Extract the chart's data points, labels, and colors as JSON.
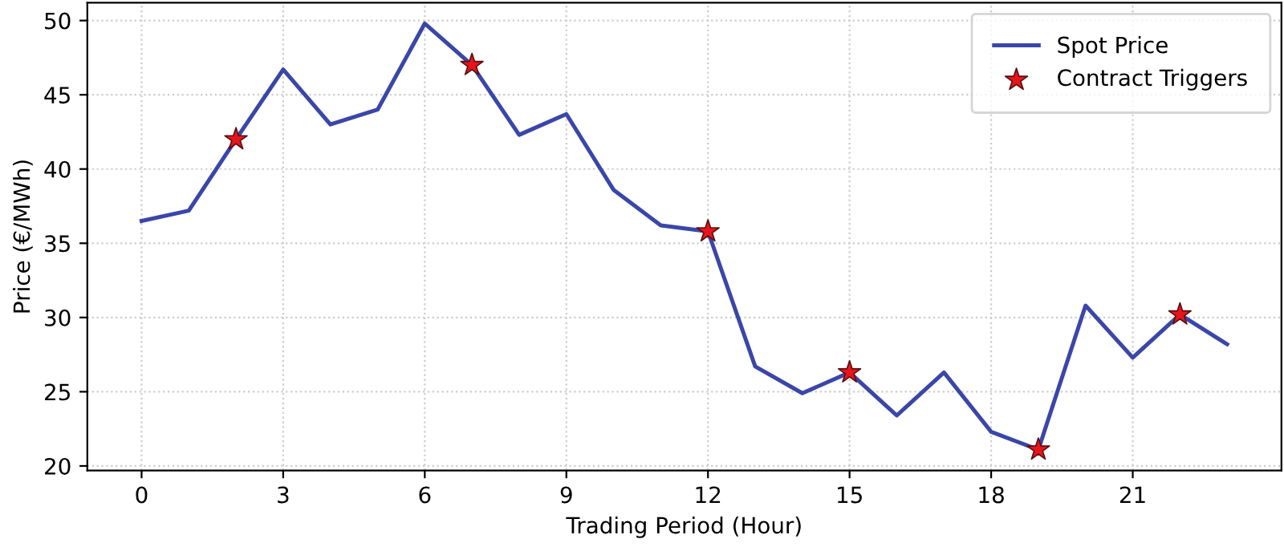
{
  "chart_data": {
    "type": "line",
    "xlabel": "Trading Period (Hour)",
    "ylabel": "Price (€/MWh)",
    "x": [
      0,
      1,
      2,
      3,
      4,
      5,
      6,
      7,
      8,
      9,
      10,
      11,
      12,
      13,
      14,
      15,
      16,
      17,
      18,
      19,
      20,
      21,
      22,
      23
    ],
    "series": [
      {
        "name": "Spot Price",
        "color": "#3a46a8",
        "marker": "none",
        "line_style": "solid",
        "values": [
          36.5,
          37.2,
          42.0,
          46.7,
          43.0,
          44.0,
          49.8,
          47.0,
          42.3,
          43.7,
          38.6,
          36.2,
          35.8,
          26.7,
          24.9,
          26.3,
          23.4,
          26.3,
          22.3,
          21.1,
          30.8,
          27.3,
          30.2,
          28.2
        ]
      },
      {
        "name": "Contract Triggers",
        "type": "scatter",
        "color": "#e8141c",
        "marker": "star",
        "x": [
          2,
          7,
          12,
          15,
          19,
          22
        ],
        "values": [
          42.0,
          47.0,
          35.8,
          26.3,
          21.1,
          30.2
        ]
      }
    ],
    "xlim": [
      -1.15,
      24.15
    ],
    "ylim": [
      19.7,
      51.2
    ],
    "xticks": [
      0,
      3,
      6,
      9,
      12,
      15,
      18,
      21
    ],
    "yticks": [
      20,
      25,
      30,
      35,
      40,
      45,
      50
    ],
    "grid": true,
    "legend": "top right"
  }
}
